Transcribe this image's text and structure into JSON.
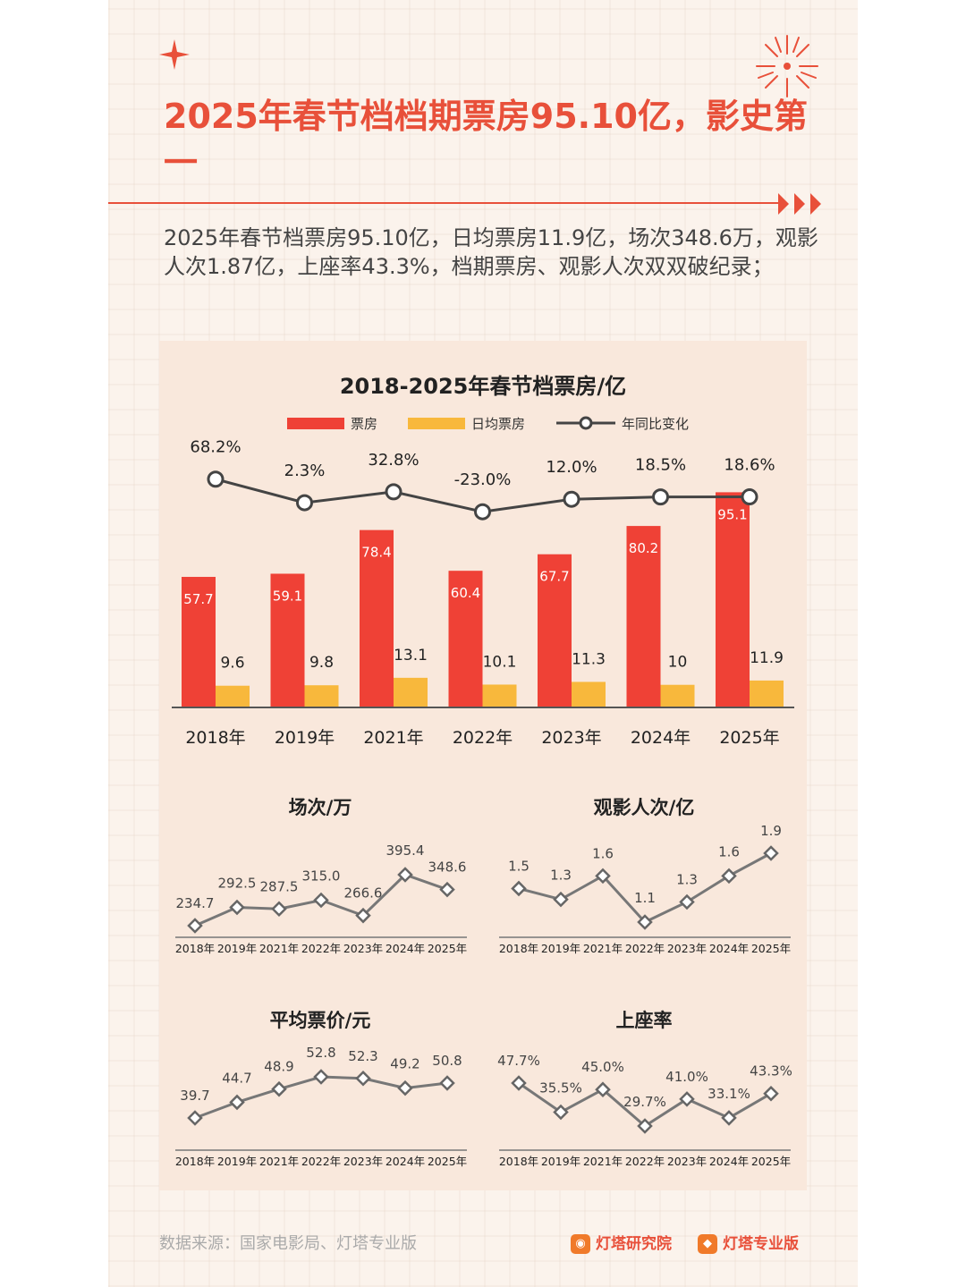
{
  "title": "2025年春节档档期票房95.10亿，影史第一",
  "description": "2025年春节档票房95.10亿，日均票房11.9亿，场次348.6万，观影人次1.87亿，上座率43.3%，档期票房、观影人次双双破纪录；",
  "footer": {
    "source": "数据来源：国家电影局、灯塔专业版",
    "brand_research": "灯塔研究院",
    "brand_pro": "灯塔专业版"
  },
  "colors": {
    "accent": "#e8503a",
    "bar_red": "#ef4136",
    "bar_yellow": "#f8b83c",
    "line": "#555555",
    "panel": "#f9e8dc"
  },
  "chart_data": [
    {
      "type": "bar",
      "title": "2018-2025年春节档票房/亿",
      "categories": [
        "2018年",
        "2019年",
        "2021年",
        "2022年",
        "2023年",
        "2024年",
        "2025年"
      ],
      "series": [
        {
          "name": "票房",
          "values": [
            57.7,
            59.1,
            78.4,
            60.4,
            67.7,
            80.2,
            95.1
          ]
        },
        {
          "name": "日均票房",
          "values": [
            9.6,
            9.8,
            13.1,
            10.1,
            11.3,
            10.0,
            11.9
          ]
        }
      ],
      "line_series": {
        "name": "年同比变化",
        "labels": [
          "68.2%",
          "2.3%",
          "32.8%",
          "-23.0%",
          "12.0%",
          "18.5%",
          "18.6%"
        ],
        "values": [
          68.2,
          2.3,
          32.8,
          -23.0,
          12.0,
          18.5,
          18.6
        ]
      },
      "legend": "top"
    },
    {
      "type": "line",
      "title": "场次/万",
      "categories": [
        "2018年",
        "2019年",
        "2021年",
        "2022年",
        "2023年",
        "2024年",
        "2025年"
      ],
      "values": [
        234.7,
        292.5,
        287.5,
        315.0,
        266.6,
        395.4,
        348.6
      ],
      "labels": [
        "234.7",
        "292.5",
        "287.5",
        "315.0",
        "266.6",
        "395.4",
        "348.6"
      ]
    },
    {
      "type": "line",
      "title": "观影人次/亿",
      "categories": [
        "2018年",
        "2019年",
        "2021年",
        "2022年",
        "2023年",
        "2024年",
        "2025年"
      ],
      "values": [
        1.45,
        1.32,
        1.6,
        1.05,
        1.29,
        1.6,
        1.87
      ],
      "labels": [
        "1.5",
        "1.3",
        "1.6",
        "1.1",
        "1.3",
        "1.6",
        "1.9"
      ]
    },
    {
      "type": "line",
      "title": "平均票价/元",
      "categories": [
        "2018年",
        "2019年",
        "2021年",
        "2022年",
        "2023年",
        "2024年",
        "2025年"
      ],
      "values": [
        39.7,
        44.7,
        48.9,
        52.8,
        52.3,
        49.2,
        50.8
      ],
      "labels": [
        "39.7",
        "44.7",
        "48.9",
        "52.8",
        "52.3",
        "49.2",
        "50.8"
      ]
    },
    {
      "type": "line",
      "title": "上座率",
      "categories": [
        "2018年",
        "2019年",
        "2021年",
        "2022年",
        "2023年",
        "2024年",
        "2025年"
      ],
      "values": [
        47.7,
        35.5,
        45.0,
        29.7,
        41.0,
        33.1,
        43.3
      ],
      "labels": [
        "47.7%",
        "35.5%",
        "45.0%",
        "29.7%",
        "41.0%",
        "33.1%",
        "43.3%"
      ]
    }
  ]
}
